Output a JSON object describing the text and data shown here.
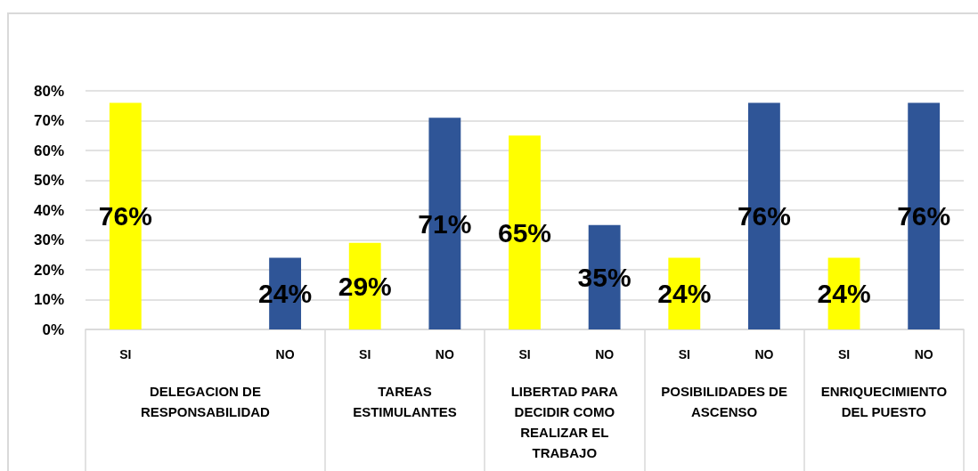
{
  "chart_data": {
    "type": "bar",
    "categories": [
      "SI",
      null,
      "NO",
      "SI",
      "NO",
      "SI",
      "NO",
      "SI",
      "NO",
      "SI",
      "NO"
    ],
    "values": [
      76,
      null,
      24,
      29,
      71,
      65,
      35,
      24,
      76,
      24,
      76
    ],
    "colors": [
      "#ffff00",
      null,
      "#2f5597",
      "#ffff00",
      "#2f5597",
      "#ffff00",
      "#2f5597",
      "#ffff00",
      "#2f5597",
      "#ffff00",
      "#2f5597"
    ],
    "value_labels": [
      "76%",
      null,
      "24%",
      "29%",
      "71%",
      "65%",
      "35%",
      "24%",
      "76%",
      "24%",
      "76%"
    ],
    "ylim": [
      0,
      80
    ],
    "yticks": [
      {
        "value": 0,
        "label": "0%"
      },
      {
        "value": 10,
        "label": "10%"
      },
      {
        "value": 20,
        "label": "20%"
      },
      {
        "value": 30,
        "label": "30%"
      },
      {
        "value": 40,
        "label": "40%"
      },
      {
        "value": 50,
        "label": "50%"
      },
      {
        "value": 60,
        "label": "60%"
      },
      {
        "value": 70,
        "label": "70%"
      },
      {
        "value": 80,
        "label": "80%"
      }
    ],
    "grid": "y",
    "annotations": [
      "DELEGACION DE RESPONSABILIDAD",
      "TAREAS ESTIMULANTES",
      "LIBERTAD PARA DECIDIR COMO REALIZAR EL TRABAJO",
      "POSIBILIDADES DE ASCENSO",
      "ENRIQUECIMIENTO DEL PUESTO"
    ]
  }
}
